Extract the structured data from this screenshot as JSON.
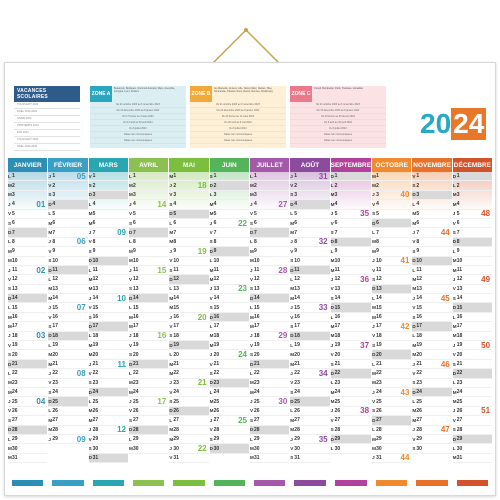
{
  "holidays": {
    "title": "VACANCES SCOLAIRES",
    "rows": [
      "TOUSSAINT 2023",
      "NOËL 2023-2024",
      "HIVER 2024",
      "PRINTEMPS 2024",
      "ÉTÉ 2024",
      "TOUSSAINT 2024",
      "NOËL 2024-2025"
    ]
  },
  "zones": [
    {
      "tag": "ZONE A",
      "color": "#2aa6bf",
      "bg": "#dbeff3",
      "cities": "Besançon, Bordeaux, Clermont-Ferrand, Dijon, Grenoble, Limoges, Lyon, Poitiers",
      "lines": [
        "Du 21 octobre 2023 au 6 novembre 2023",
        "Du 23 décembre 2023 au 8 janvier 2024",
        "Du 17 février au 4 mars 2024",
        "Du 13 avril au 29 avril 2024",
        "Du 6 juillet 2024",
        "Dates non communiquées",
        "Dates non communiquées"
      ]
    },
    {
      "tag": "ZONE B",
      "color": "#f2a93b",
      "bg": "#fdf0d6",
      "cities": "Aix-Marseille, Amiens, Lille, Nancy-Metz, Nantes, Nice, Normandie, Orléans-Tours, Reims, Rennes, Strasbourg",
      "lines": [
        "Du 21 octobre 2023 au 6 novembre 2023",
        "Du 23 décembre 2023 au 8 janvier 2024",
        "Du 24 février au 11 mars 2024",
        "Du 20 avril au 6 mai 2024",
        "Du 6 juillet 2024",
        "Dates non communiquées",
        "Dates non communiquées"
      ]
    },
    {
      "tag": "ZONE C",
      "color": "#ea7a8a",
      "bg": "#fbe3e5",
      "cities": "Créteil, Montpellier, Paris, Toulouse, Versailles",
      "lines": [
        "Du 21 octobre 2023 au 6 novembre 2023",
        "Du 23 décembre 2023 au 8 janvier 2024",
        "Du 10 février au 26 février 2024",
        "Du 6 avril au 22 avril 2024",
        "Du 6 juillet 2024",
        "Dates non communiquées",
        "Dates non communiquées"
      ]
    }
  ],
  "year": {
    "part1": "20",
    "part2": "24"
  },
  "months": [
    {
      "name": "JANVIER",
      "color": "#2b8fb5",
      "start": 0,
      "count": 31,
      "weeks": [
        "01",
        "02",
        "03",
        "04",
        "05"
      ]
    },
    {
      "name": "FÉVRIER",
      "color": "#3a9fc4",
      "start": 3,
      "count": 29,
      "weeks": [
        "05",
        "06",
        "07",
        "08",
        "09"
      ]
    },
    {
      "name": "MARS",
      "color": "#2aa6b0",
      "start": 4,
      "count": 31,
      "weeks": [
        "09",
        "10",
        "11",
        "12",
        "13"
      ]
    },
    {
      "name": "AVRIL",
      "color": "#8cc152",
      "start": 0,
      "count": 30,
      "weeks": [
        "14",
        "15",
        "16",
        "17",
        "18"
      ]
    },
    {
      "name": "MAI",
      "color": "#7cbf3f",
      "start": 2,
      "count": 31,
      "weeks": [
        "18",
        "19",
        "20",
        "21",
        "22"
      ]
    },
    {
      "name": "JUIN",
      "color": "#54b45a",
      "start": 5,
      "count": 30,
      "weeks": [
        "22",
        "23",
        "24",
        "25",
        "26"
      ]
    },
    {
      "name": "JUILLET",
      "color": "#a45aa8",
      "start": 0,
      "count": 31,
      "weeks": [
        "27",
        "28",
        "29",
        "30",
        "31"
      ]
    },
    {
      "name": "AOÛT",
      "color": "#8d4b9e",
      "start": 3,
      "count": 31,
      "weeks": [
        "31",
        "32",
        "33",
        "34",
        "35"
      ]
    },
    {
      "name": "SEPTEMBRE",
      "color": "#b3409a",
      "start": 6,
      "count": 30,
      "weeks": [
        "35",
        "36",
        "37",
        "38",
        "39"
      ]
    },
    {
      "name": "OCTOBRE",
      "color": "#ef8a2e",
      "start": 1,
      "count": 31,
      "weeks": [
        "40",
        "41",
        "42",
        "43",
        "44"
      ]
    },
    {
      "name": "NOVEMBRE",
      "color": "#e9722a",
      "start": 4,
      "count": 30,
      "weeks": [
        "44",
        "45",
        "46",
        "47",
        "48"
      ]
    },
    {
      "name": "DÉCEMBRE",
      "color": "#d2532a",
      "start": 6,
      "count": 31,
      "weeks": [
        "48",
        "49",
        "50",
        "51",
        "52"
      ]
    }
  ],
  "weekday_letters": [
    "L",
    "M",
    "M",
    "J",
    "V",
    "S",
    "D"
  ]
}
